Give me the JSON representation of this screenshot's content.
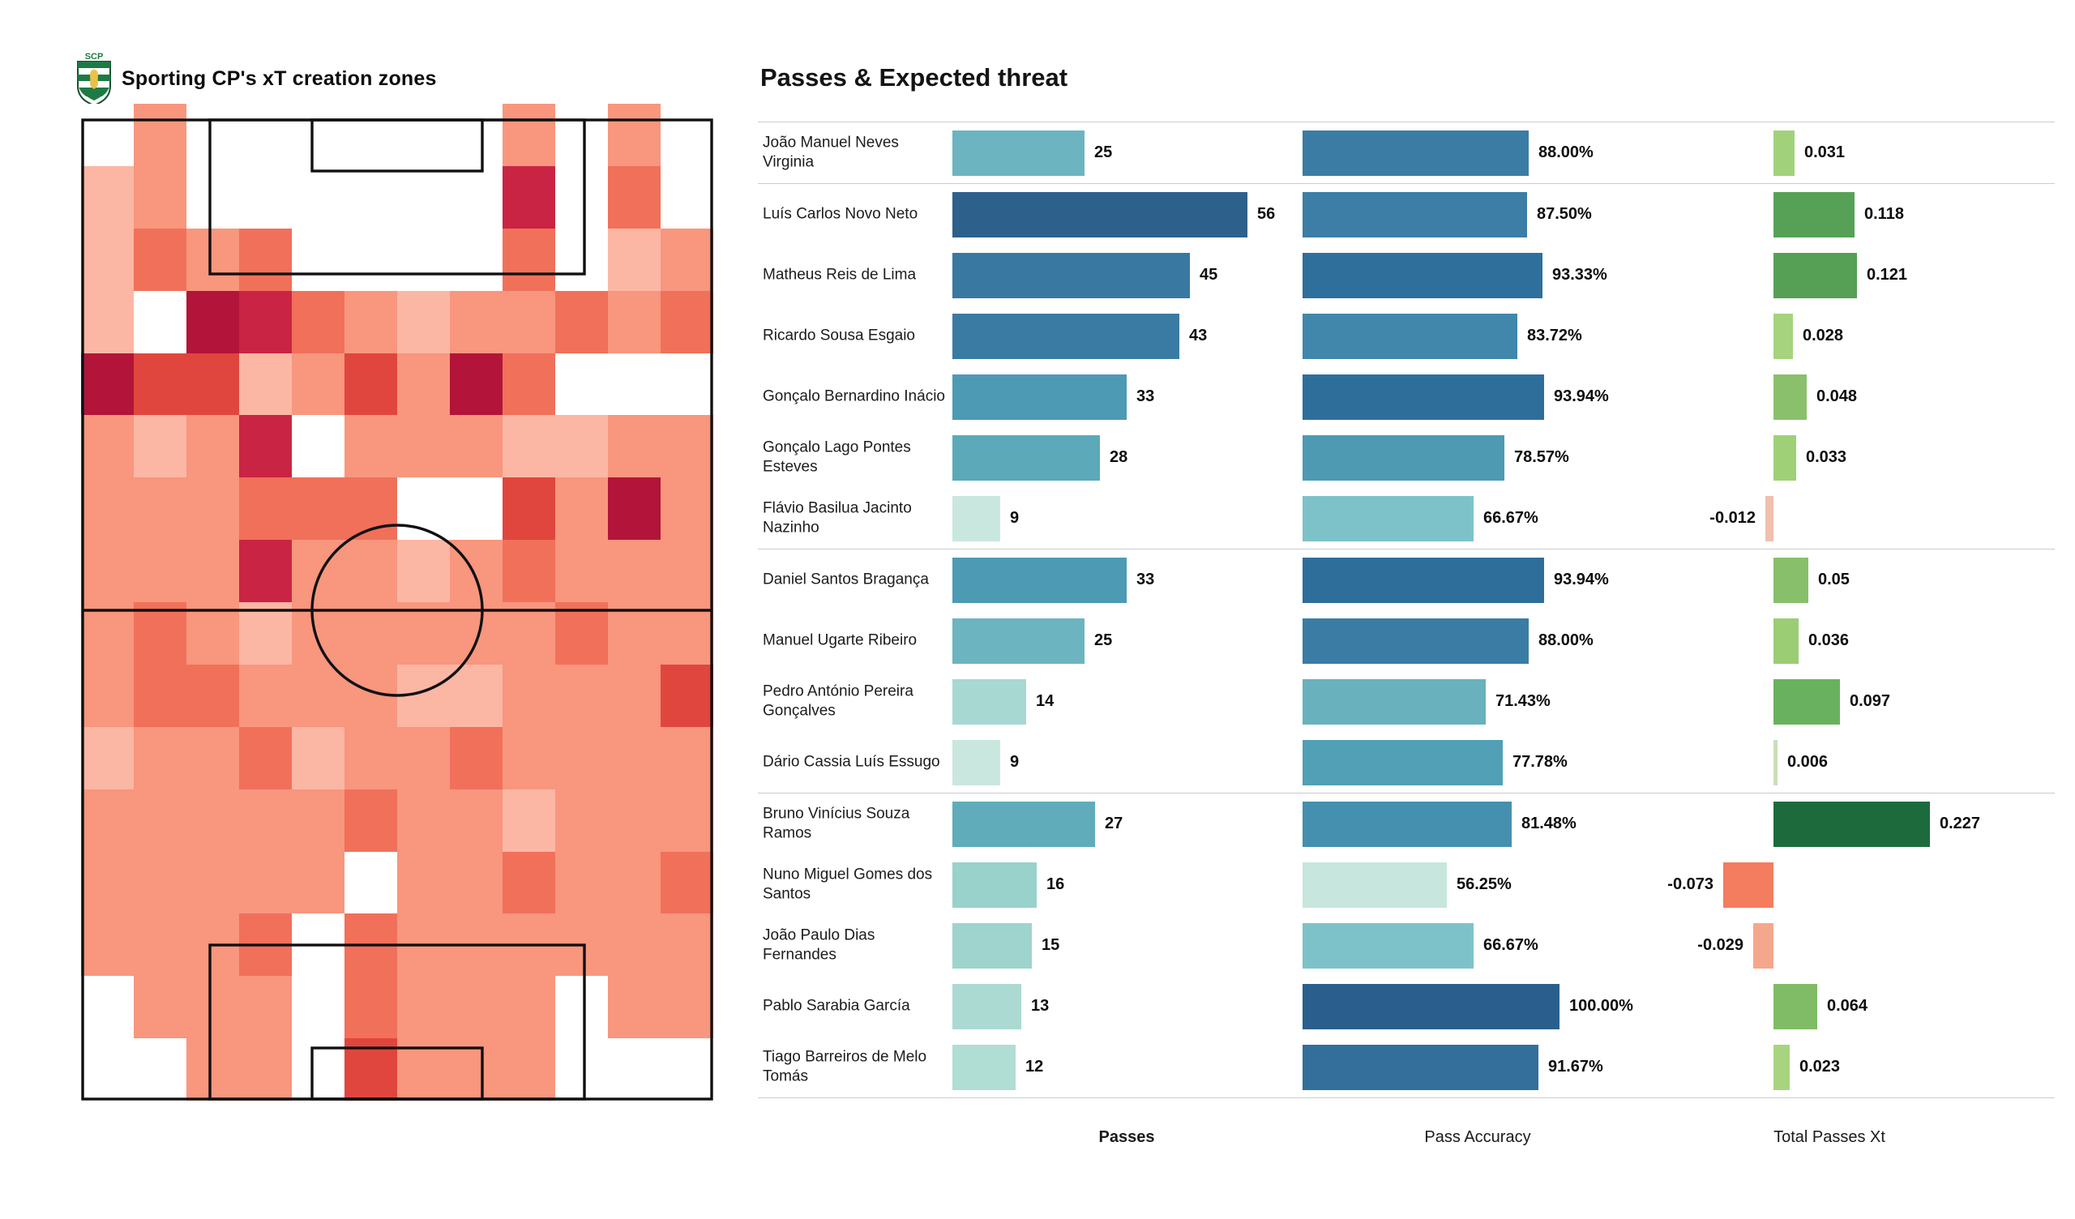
{
  "header": {
    "pitch_title": "Sporting CP's xT creation zones",
    "panel_title": "Passes & Expected threat"
  },
  "logo": {
    "club": "Sporting CP",
    "initials": "SCP",
    "green": "#1e7a45",
    "gold": "#e8c24a"
  },
  "footer": {
    "passes_label": "Passes",
    "accuracy_label": "Pass Accuracy",
    "xt_label": "Total Passes Xt"
  },
  "colors": {
    "separator": "#cccccc",
    "pitch_line": "#111111",
    "text": "#111111"
  },
  "players": [
    {
      "name": "João Manuel Neves Virginia",
      "passes": 25,
      "passes_label": "25",
      "passes_color": "#6cb4c0",
      "accuracy": 88.0,
      "accuracy_label": "88.00%",
      "accuracy_color": "#3a7ca4",
      "xt": 0.031,
      "xt_label": "0.031",
      "xt_color": "#a2d17b",
      "group_start": false
    },
    {
      "name": "Luís Carlos Novo Neto",
      "passes": 56,
      "passes_label": "56",
      "passes_color": "#2e608c",
      "accuracy": 87.5,
      "accuracy_label": "87.50%",
      "accuracy_color": "#3c7ea6",
      "xt": 0.118,
      "xt_label": "0.118",
      "xt_color": "#57a156",
      "group_start": true
    },
    {
      "name": "Matheus Reis de Lima",
      "passes": 45,
      "passes_label": "45",
      "passes_color": "#3878a1",
      "accuracy": 93.33,
      "accuracy_label": "93.33%",
      "accuracy_color": "#2f6f9c",
      "xt": 0.121,
      "xt_label": "0.121",
      "xt_color": "#55a055",
      "group_start": false
    },
    {
      "name": "Ricardo Sousa Esgaio",
      "passes": 43,
      "passes_label": "43",
      "passes_color": "#3a7ba4",
      "accuracy": 83.72,
      "accuracy_label": "83.72%",
      "accuracy_color": "#4187ab",
      "xt": 0.028,
      "xt_label": "0.028",
      "xt_color": "#a5d37e",
      "group_start": false
    },
    {
      "name": "Gonçalo Bernardino Inácio",
      "passes": 33,
      "passes_label": "33",
      "passes_color": "#4d9ab4",
      "accuracy": 93.94,
      "accuracy_label": "93.94%",
      "accuracy_color": "#2e6e9b",
      "xt": 0.048,
      "xt_label": "0.048",
      "xt_color": "#8ac06c",
      "group_start": false
    },
    {
      "name": "Gonçalo Lago Pontes Esteves",
      "passes": 28,
      "passes_label": "28",
      "passes_color": "#5ca9ba",
      "accuracy": 78.57,
      "accuracy_label": "78.57%",
      "accuracy_color": "#4e9ab3",
      "xt": 0.033,
      "xt_label": "0.033",
      "xt_color": "#9fd078",
      "group_start": false
    },
    {
      "name": "Flávio Basilua Jacinto Nazinho",
      "passes": 9,
      "passes_label": "9",
      "passes_color": "#c9e7df",
      "accuracy": 66.67,
      "accuracy_label": "66.67%",
      "accuracy_color": "#7ec2c9",
      "xt": -0.012,
      "xt_label": "-0.012",
      "xt_color": "#efc0ae",
      "group_start": false
    },
    {
      "name": "Daniel Santos Bragança",
      "passes": 33,
      "passes_label": "33",
      "passes_color": "#4d9ab4",
      "accuracy": 93.94,
      "accuracy_label": "93.94%",
      "accuracy_color": "#2e6e9b",
      "xt": 0.05,
      "xt_label": "0.05",
      "xt_color": "#88bf6a",
      "group_start": true
    },
    {
      "name": "Manuel Ugarte Ribeiro",
      "passes": 25,
      "passes_label": "25",
      "passes_color": "#6cb4c0",
      "accuracy": 88.0,
      "accuracy_label": "88.00%",
      "accuracy_color": "#3a7ca4",
      "xt": 0.036,
      "xt_label": "0.036",
      "xt_color": "#9bcd74",
      "group_start": false
    },
    {
      "name": "Pedro António Pereira Gonçalves",
      "passes": 14,
      "passes_label": "14",
      "passes_color": "#a7d8d1",
      "accuracy": 71.43,
      "accuracy_label": "71.43%",
      "accuracy_color": "#68b1bd",
      "xt": 0.097,
      "xt_label": "0.097",
      "xt_color": "#6ab15f",
      "group_start": false
    },
    {
      "name": "Dário Cassia Luís Essugo",
      "passes": 9,
      "passes_label": "9",
      "passes_color": "#c9e7df",
      "accuracy": 77.78,
      "accuracy_label": "77.78%",
      "accuracy_color": "#51a0b6",
      "xt": 0.006,
      "xt_label": "0.006",
      "xt_color": "#c9dfb8",
      "group_start": false
    },
    {
      "name": "Bruno Vinícius Souza Ramos",
      "passes": 27,
      "passes_label": "27",
      "passes_color": "#60acbb",
      "accuracy": 81.48,
      "accuracy_label": "81.48%",
      "accuracy_color": "#4590ae",
      "xt": 0.227,
      "xt_label": "0.227",
      "xt_color": "#1d6b3d",
      "group_start": true
    },
    {
      "name": "Nuno Miguel Gomes dos Santos",
      "passes": 16,
      "passes_label": "16",
      "passes_color": "#99d1cb",
      "accuracy": 56.25,
      "accuracy_label": "56.25%",
      "accuracy_color": "#c7e6dd",
      "xt": -0.073,
      "xt_label": "-0.073",
      "xt_color": "#f37d5e",
      "group_start": false
    },
    {
      "name": "João Paulo Dias Fernandes",
      "passes": 15,
      "passes_label": "15",
      "passes_color": "#9ed4cd",
      "accuracy": 66.67,
      "accuracy_label": "66.67%",
      "accuracy_color": "#7ec2c9",
      "xt": -0.029,
      "xt_label": "-0.029",
      "xt_color": "#f5a78d",
      "group_start": false
    },
    {
      "name": "Pablo Sarabia García",
      "passes": 13,
      "passes_label": "13",
      "passes_color": "#abdad2",
      "accuracy": 100.0,
      "accuracy_label": "100.00%",
      "accuracy_color": "#2a5f8d",
      "xt": 0.064,
      "xt_label": "0.064",
      "xt_color": "#7fbc65",
      "group_start": false
    },
    {
      "name": "Tiago Barreiros de Melo Tomás",
      "passes": 12,
      "passes_label": "12",
      "passes_color": "#b0ddd4",
      "accuracy": 91.67,
      "accuracy_label": "91.67%",
      "accuracy_color": "#336f9a",
      "xt": 0.023,
      "xt_label": "0.023",
      "xt_color": "#a8d47f",
      "group_start": false
    }
  ],
  "chart_data": [
    {
      "type": "heatmap",
      "title": "Sporting CP's xT creation zones",
      "rows": 16,
      "cols": 12,
      "orientation": "vertical-pitch-attacking-up",
      "palette": {
        "0": "#ffffff",
        "2": "#fbb7a4",
        "3": "#f8967e",
        "4": "#f1705a",
        "5": "#e0463e",
        "6": "#c92444",
        "7": "#b21539"
      },
      "grid": [
        [
          0,
          3,
          0,
          0,
          0,
          0,
          0,
          0,
          3,
          0,
          3,
          0
        ],
        [
          2,
          3,
          0,
          0,
          0,
          0,
          0,
          0,
          6,
          0,
          4,
          0
        ],
        [
          2,
          4,
          3,
          4,
          0,
          0,
          0,
          0,
          4,
          0,
          2,
          3
        ],
        [
          2,
          0,
          7,
          6,
          4,
          3,
          2,
          3,
          3,
          4,
          3,
          4
        ],
        [
          7,
          5,
          5,
          2,
          3,
          5,
          3,
          7,
          4,
          0,
          0,
          0
        ],
        [
          3,
          2,
          3,
          6,
          0,
          3,
          3,
          3,
          2,
          2,
          3,
          3
        ],
        [
          3,
          3,
          3,
          4,
          4,
          4,
          0,
          0,
          5,
          3,
          7,
          3
        ],
        [
          3,
          3,
          3,
          6,
          3,
          3,
          2,
          3,
          4,
          3,
          3,
          3
        ],
        [
          3,
          4,
          3,
          2,
          3,
          3,
          3,
          3,
          3,
          4,
          3,
          3
        ],
        [
          3,
          4,
          4,
          3,
          3,
          3,
          2,
          2,
          3,
          3,
          3,
          5
        ],
        [
          2,
          3,
          3,
          4,
          2,
          3,
          3,
          4,
          3,
          3,
          3,
          3
        ],
        [
          3,
          3,
          3,
          3,
          3,
          4,
          3,
          3,
          2,
          3,
          3,
          3
        ],
        [
          3,
          3,
          3,
          3,
          3,
          0,
          3,
          3,
          4,
          3,
          3,
          4
        ],
        [
          3,
          3,
          3,
          4,
          0,
          4,
          3,
          3,
          3,
          3,
          3,
          3
        ],
        [
          0,
          3,
          3,
          3,
          0,
          4,
          3,
          3,
          3,
          0,
          3,
          3
        ],
        [
          0,
          0,
          3,
          3,
          0,
          5,
          3,
          3,
          3,
          0,
          0,
          0
        ]
      ]
    },
    {
      "type": "bar",
      "title": "Passes & Expected threat",
      "categories": [
        "João Manuel Neves Virginia",
        "Luís Carlos Novo Neto",
        "Matheus Reis de Lima",
        "Ricardo Sousa Esgaio",
        "Gonçalo Bernardino Inácio",
        "Gonçalo Lago Pontes Esteves",
        "Flávio Basilua Jacinto Nazinho",
        "Daniel Santos Bragança",
        "Manuel Ugarte Ribeiro",
        "Pedro António Pereira Gonçalves",
        "Dário Cassia Luís Essugo",
        "Bruno Vinícius Souza Ramos",
        "Nuno Miguel Gomes dos Santos",
        "João Paulo Dias Fernandes",
        "Pablo Sarabia García",
        "Tiago Barreiros de Melo Tomás"
      ],
      "series": [
        {
          "name": "Passes",
          "values": [
            25,
            56,
            45,
            43,
            33,
            28,
            9,
            33,
            25,
            14,
            9,
            27,
            16,
            15,
            13,
            12
          ]
        },
        {
          "name": "Pass Accuracy",
          "values": [
            88.0,
            87.5,
            93.33,
            83.72,
            93.94,
            78.57,
            66.67,
            93.94,
            88.0,
            71.43,
            77.78,
            81.48,
            56.25,
            66.67,
            100.0,
            91.67
          ]
        },
        {
          "name": "Total Passes Xt",
          "values": [
            0.031,
            0.118,
            0.121,
            0.028,
            0.048,
            0.033,
            -0.012,
            0.05,
            0.036,
            0.097,
            0.006,
            0.227,
            -0.073,
            -0.029,
            0.064,
            0.023
          ]
        }
      ],
      "legend_position": "bottom",
      "grid": false
    }
  ]
}
